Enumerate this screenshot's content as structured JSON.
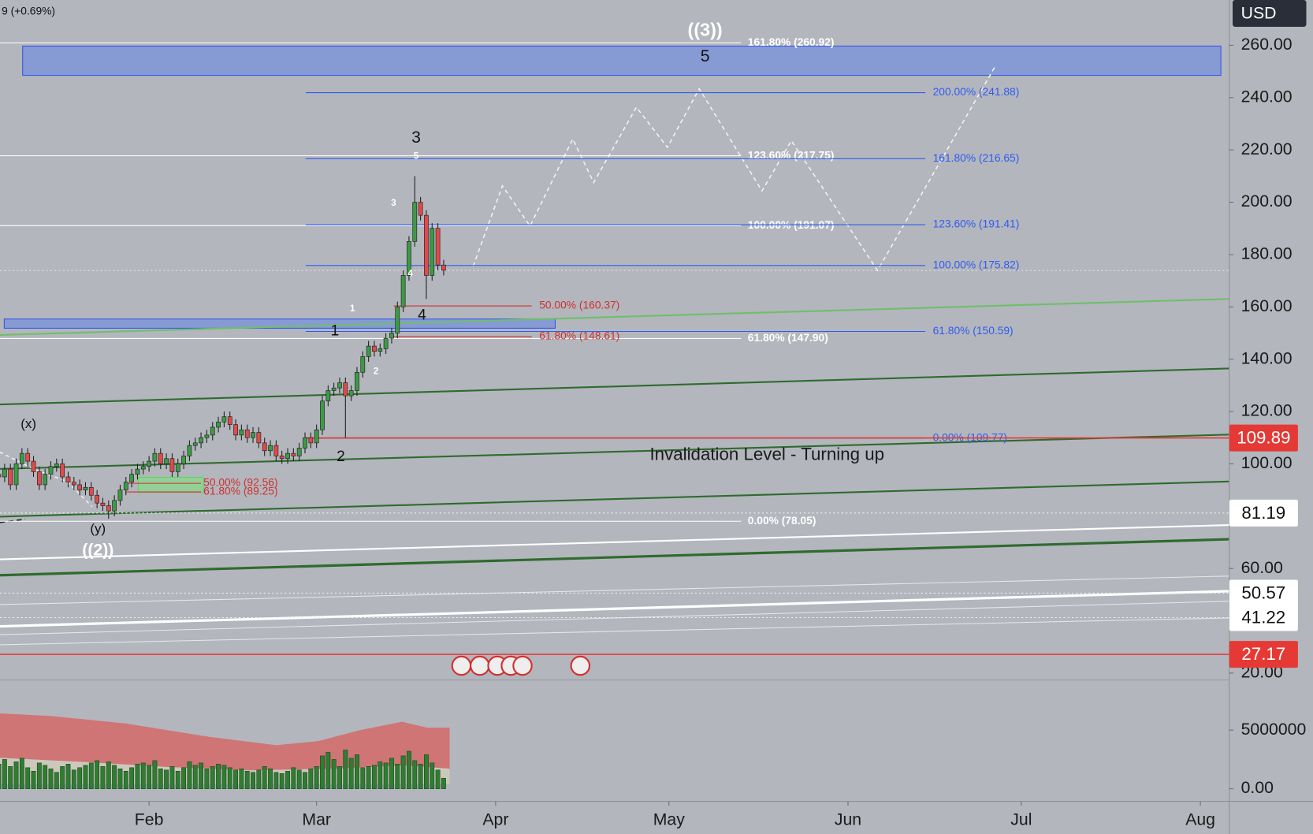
{
  "header": {
    "ticker_change": "9 (+0.69%)",
    "currency": "USD"
  },
  "chart_data": {
    "type": "candlestick",
    "open": [
      96,
      95,
      98,
      92,
      100,
      104,
      101,
      97,
      92,
      96,
      99,
      100,
      95,
      93,
      92,
      90,
      91,
      88,
      85,
      84,
      82,
      86,
      90,
      93,
      96,
      98,
      99,
      101,
      104,
      100,
      102,
      97,
      100,
      103,
      107,
      108,
      110,
      111,
      114,
      116,
      118,
      115,
      111,
      113,
      110,
      112,
      108,
      105,
      107,
      103,
      102,
      104,
      103,
      106,
      110,
      108,
      113,
      124,
      128,
      129,
      131,
      126,
      128,
      135,
      141,
      145,
      143,
      144,
      148,
      150,
      160,
      172,
      185,
      200,
      195,
      172,
      190,
      176
    ],
    "high": [
      98,
      100,
      100,
      102,
      106,
      106,
      103,
      99,
      98,
      101,
      102,
      102,
      97,
      95,
      94,
      93,
      93,
      90,
      87,
      86,
      88,
      92,
      95,
      98,
      100,
      101,
      103,
      106,
      106,
      104,
      104,
      102,
      105,
      109,
      110,
      112,
      113,
      116,
      118,
      120,
      120,
      117,
      115,
      115,
      114,
      114,
      110,
      109,
      109,
      105,
      106,
      106,
      108,
      112,
      112,
      115,
      126,
      130,
      131,
      133,
      133,
      130,
      137,
      143,
      147,
      147,
      146,
      150,
      152,
      162,
      174,
      187,
      210,
      202,
      197,
      192,
      192,
      178
    ],
    "low": [
      93,
      93,
      90,
      90,
      98,
      99,
      95,
      90,
      90,
      94,
      97,
      93,
      91,
      90,
      88,
      88,
      86,
      83,
      82,
      79,
      80,
      84,
      88,
      91,
      94,
      96,
      97,
      99,
      98,
      98,
      95,
      95,
      98,
      101,
      105,
      106,
      108,
      109,
      112,
      114,
      113,
      109,
      109,
      108,
      108,
      106,
      103,
      103,
      101,
      100,
      100,
      101,
      101,
      104,
      106,
      106,
      111,
      122,
      126,
      127,
      110,
      124,
      126,
      133,
      139,
      141,
      141,
      142,
      146,
      148,
      158,
      170,
      183,
      193,
      163,
      170,
      174,
      172
    ],
    "close": [
      95,
      98,
      92,
      100,
      104,
      101,
      97,
      92,
      96,
      99,
      100,
      95,
      93,
      92,
      90,
      91,
      88,
      85,
      84,
      82,
      86,
      90,
      93,
      96,
      98,
      99,
      101,
      104,
      100,
      102,
      97,
      100,
      103,
      107,
      108,
      110,
      111,
      114,
      116,
      118,
      115,
      111,
      113,
      110,
      112,
      108,
      105,
      107,
      103,
      102,
      104,
      103,
      106,
      110,
      108,
      113,
      124,
      128,
      129,
      131,
      126,
      128,
      135,
      141,
      145,
      143,
      144,
      148,
      150,
      160,
      172,
      185,
      200,
      195,
      172,
      190,
      176,
      174
    ],
    "up_color": "#3d9a45",
    "down_color": "#e04a4a",
    "xlim": [
      0.2,
      213
    ],
    "xticks": [
      {
        "value": 26,
        "label": "Feb"
      },
      {
        "value": 55,
        "label": "Mar"
      },
      {
        "value": 86,
        "label": "Apr"
      },
      {
        "value": 116,
        "label": "May"
      },
      {
        "value": 147,
        "label": "Jun"
      },
      {
        "value": 177,
        "label": "Jul"
      },
      {
        "value": 208,
        "label": "Aug"
      }
    ],
    "ylim": [
      17.4,
      277.3
    ],
    "yticks": [
      {
        "value": 260,
        "label": "260.00"
      },
      {
        "value": 240,
        "label": "240.00"
      },
      {
        "value": 220,
        "label": "220.00"
      },
      {
        "value": 200,
        "label": "200.00"
      },
      {
        "value": 180,
        "label": "180.00"
      },
      {
        "value": 160,
        "label": "160.00"
      },
      {
        "value": 140,
        "label": "140.00"
      },
      {
        "value": 120,
        "label": "120.00"
      },
      {
        "value": 100,
        "label": "100.00"
      },
      {
        "value": 60,
        "label": "60.00"
      },
      {
        "value": 20,
        "label": "20.00"
      }
    ],
    "price_tags": [
      {
        "value": 109.89,
        "color": "#e53935"
      },
      {
        "value": 81.19,
        "color": "#ffffff"
      },
      {
        "value": 50.57,
        "color": "#ffffff"
      },
      {
        "value": 41.22,
        "color": "#ffffff"
      },
      {
        "value": 27.17,
        "color": "#e53935"
      }
    ],
    "fib_sets": [
      {
        "color": "#ffffff",
        "levels": [
          {
            "label": "161.80% (260.92)",
            "level": 260.92
          },
          {
            "label": "123.60% (217.75)",
            "level": 217.75
          },
          {
            "label": "100.00% (191.07)",
            "level": 191.07
          },
          {
            "label": "61.80% (147.90)",
            "level": 147.9
          },
          {
            "label": "0.00% (78.05)",
            "level": 78.05
          }
        ]
      },
      {
        "color": "#2f5cf0",
        "levels": [
          {
            "label": "200.00% (241.88)",
            "level": 241.88
          },
          {
            "label": "161.80% (216.65)",
            "level": 216.65
          },
          {
            "label": "123.60% (191.41)",
            "level": 191.41
          },
          {
            "label": "100.00% (175.82)",
            "level": 175.82
          },
          {
            "label": "61.80% (150.59)",
            "level": 150.59
          },
          {
            "label": "0.00% (109.77)",
            "level": 109.77
          }
        ]
      },
      {
        "color": "#d03030",
        "levels": [
          {
            "label": "50.00% (160.37)",
            "level": 160.37
          },
          {
            "label": "61.80% (148.61)",
            "level": 148.61
          }
        ]
      },
      {
        "color": "#d03030",
        "levels": [
          {
            "label": "50.00% (92.56)",
            "level": 92.56
          },
          {
            "label": "61.80% (89.25)",
            "level": 89.25
          }
        ]
      }
    ],
    "wave_labels": [
      "((3))",
      "5",
      "3",
      "5",
      "3",
      "4",
      "1",
      "4",
      "1",
      "2",
      "2",
      "(x)",
      "(y)",
      "((2))"
    ],
    "annotation": "Invalidation Level - Turning up",
    "volume": {
      "values": [
        2100000,
        2500000,
        1900000,
        2300000,
        2600000,
        1800000,
        1500000,
        2200000,
        2000000,
        1700000,
        1400000,
        1900000,
        2100000,
        1600000,
        1800000,
        2000000,
        2200000,
        2400000,
        1900000,
        2300000,
        2000000,
        1700000,
        1500000,
        1800000,
        2100000,
        2200000,
        2000000,
        2400000,
        1700000,
        1600000,
        1900000,
        1500000,
        1800000,
        2300000,
        2000000,
        2200000,
        1700000,
        1900000,
        2100000,
        2000000,
        1800000,
        1600000,
        1700000,
        1500000,
        1400000,
        1600000,
        1900000,
        1700000,
        1400000,
        1300000,
        1500000,
        1800000,
        1600000,
        1400000,
        1700000,
        1900000,
        2800000,
        3100000,
        2500000,
        1900000,
        3300000,
        2600000,
        2900000,
        1800000,
        1900000,
        2000000,
        2300000,
        2200000,
        2600000,
        2100000,
        2800000,
        3200000,
        2400000,
        2100000,
        2900000,
        2200000,
        1600000,
        900000
      ],
      "color": "#2e7d32",
      "lim": [
        0,
        8700000
      ],
      "ticks": [
        5000000,
        {
          "value": 0,
          "label": "0.00"
        }
      ]
    }
  }
}
